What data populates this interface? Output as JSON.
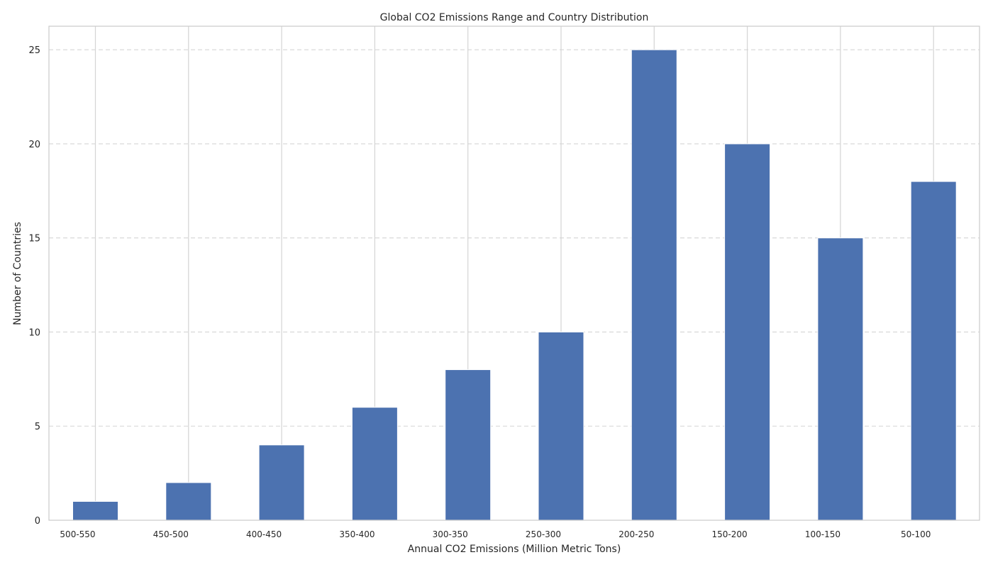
{
  "chart_data": {
    "type": "bar",
    "title": "Global CO2 Emissions Range and Country Distribution",
    "xlabel": "Annual CO2 Emissions (Million Metric Tons)",
    "ylabel": "Number of Countries",
    "categories": [
      "500-550",
      "450-500",
      "400-450",
      "350-400",
      "300-350",
      "250-300",
      "200-250",
      "150-200",
      "100-150",
      "50-100"
    ],
    "values": [
      1,
      2,
      4,
      6,
      8,
      10,
      25,
      20,
      15,
      18
    ],
    "ylim": [
      0,
      26.25
    ],
    "yticks": [
      0,
      5,
      10,
      15,
      20,
      25
    ],
    "grid": {
      "x": true,
      "y": true,
      "y_style": "dashed"
    },
    "colors": {
      "bar": "#4c72b0",
      "grid": "#d5d5d5",
      "axes": "#cccccc",
      "text": "#262626"
    }
  }
}
